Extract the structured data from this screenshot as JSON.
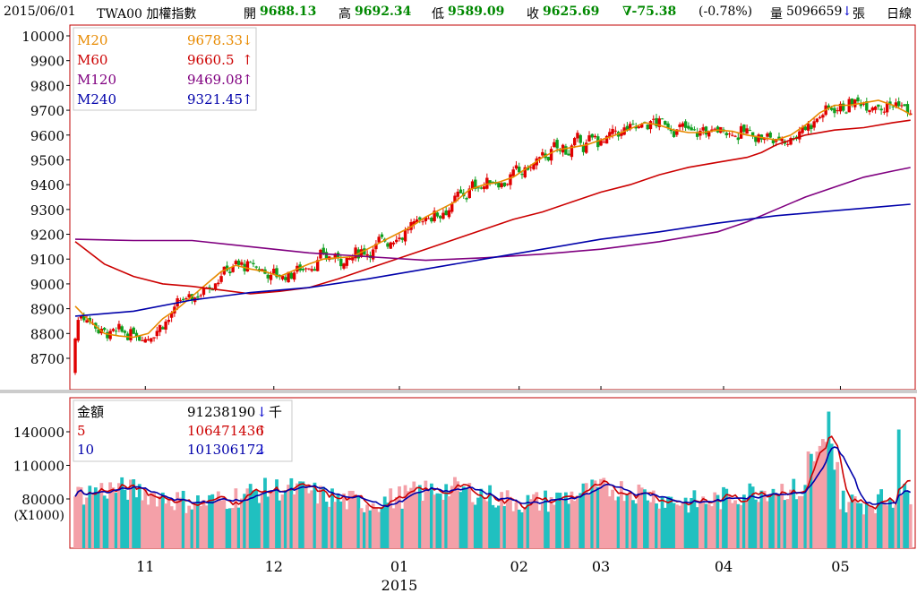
{
  "header": {
    "date": "2015/06/01",
    "symbol": "TWA00 加權指數",
    "open_label": "開",
    "open_value": "9688.13",
    "high_label": "高",
    "high_value": "9692.34",
    "low_label": "低",
    "low_value": "9589.09",
    "close_label": "收",
    "close_value": "9625.69",
    "change": "∇-75.38",
    "change_pct": "(-0.78%)",
    "volume_label": "量",
    "volume_value": "5096659",
    "volume_arrow": "↓",
    "volume_unit": "張",
    "period": "日線"
  },
  "price_legend": [
    {
      "name": "M20",
      "value": "9678.33",
      "arrow": "↓",
      "color": "#e88a00"
    },
    {
      "name": "M60",
      "value": "9660.5",
      "arrow": "↑",
      "color": "#cc0000"
    },
    {
      "name": "M120",
      "value": "9469.08",
      "arrow": "↑",
      "color": "#800080"
    },
    {
      "name": "M240",
      "value": "9321.45",
      "arrow": "↑",
      "color": "#0000aa"
    }
  ],
  "volume_legend": [
    {
      "name": "金額",
      "value": "91238190",
      "arrow": "↓",
      "unit": "千",
      "color": "#000000"
    },
    {
      "name": "5",
      "value": "106471436",
      "arrow": "↑",
      "unit": "",
      "color": "#cc0000"
    },
    {
      "name": "10",
      "value": "101306172",
      "arrow": "↓",
      "unit": "",
      "color": "#0000aa"
    }
  ],
  "colors": {
    "up": "#f08c8c",
    "down": "#10a878",
    "up_candle": "#e00000",
    "down_candle": "#10a020",
    "vol_up": "#f4a0a8",
    "vol_down": "#20c0c0",
    "frame": "#c00000",
    "grid": "#999999"
  },
  "chart_data": [
    {
      "type": "candlestick",
      "ylim": [
        8600,
        10050
      ],
      "y_ticks": [
        8700,
        8800,
        8900,
        9000,
        9100,
        9200,
        9300,
        9400,
        9500,
        9600,
        9700,
        9800,
        9900,
        10000
      ],
      "x_ticks": [
        "11",
        "12",
        "01",
        "02",
        "03",
        "04",
        "05"
      ],
      "x_year_label": "2015",
      "series": [
        {
          "name": "M20",
          "points": [
            [
              0,
              8910
            ],
            [
              5,
              8850
            ],
            [
              10,
              8800
            ],
            [
              15,
              8790
            ],
            [
              20,
              8785
            ],
            [
              25,
              8800
            ],
            [
              30,
              8860
            ],
            [
              35,
              8900
            ],
            [
              40,
              8950
            ],
            [
              45,
              9000
            ],
            [
              50,
              9050
            ],
            [
              55,
              9075
            ],
            [
              60,
              9060
            ],
            [
              65,
              9050
            ],
            [
              70,
              9030
            ],
            [
              75,
              9055
            ],
            [
              80,
              9080
            ],
            [
              85,
              9100
            ],
            [
              90,
              9105
            ],
            [
              95,
              9110
            ],
            [
              100,
              9140
            ],
            [
              105,
              9170
            ],
            [
              110,
              9200
            ],
            [
              115,
              9230
            ],
            [
              120,
              9270
            ],
            [
              125,
              9300
            ],
            [
              130,
              9330
            ],
            [
              135,
              9380
            ],
            [
              140,
              9400
            ],
            [
              145,
              9410
            ],
            [
              150,
              9430
            ],
            [
              155,
              9470
            ],
            [
              160,
              9510
            ],
            [
              165,
              9540
            ],
            [
              170,
              9550
            ],
            [
              175,
              9560
            ],
            [
              180,
              9580
            ],
            [
              185,
              9600
            ],
            [
              190,
              9625
            ],
            [
              195,
              9650
            ],
            [
              200,
              9640
            ],
            [
              205,
              9620
            ],
            [
              210,
              9610
            ],
            [
              215,
              9610
            ],
            [
              220,
              9620
            ],
            [
              225,
              9615
            ],
            [
              230,
              9600
            ],
            [
              235,
              9590
            ],
            [
              240,
              9580
            ],
            [
              245,
              9600
            ],
            [
              250,
              9640
            ],
            [
              255,
              9690
            ],
            [
              260,
              9720
            ],
            [
              265,
              9720
            ],
            [
              270,
              9730
            ],
            [
              275,
              9740
            ],
            [
              280,
              9720
            ],
            [
              285,
              9690
            ],
            [
              286,
              9680
            ]
          ]
        },
        {
          "name": "M60",
          "points": [
            [
              0,
              9170
            ],
            [
              10,
              9080
            ],
            [
              20,
              9030
            ],
            [
              30,
              9000
            ],
            [
              40,
              8990
            ],
            [
              50,
              8975
            ],
            [
              60,
              8960
            ],
            [
              70,
              8970
            ],
            [
              80,
              8985
            ],
            [
              90,
              9020
            ],
            [
              100,
              9060
            ],
            [
              110,
              9100
            ],
            [
              120,
              9140
            ],
            [
              130,
              9180
            ],
            [
              140,
              9220
            ],
            [
              150,
              9260
            ],
            [
              160,
              9290
            ],
            [
              170,
              9330
            ],
            [
              180,
              9370
            ],
            [
              190,
              9400
            ],
            [
              200,
              9440
            ],
            [
              210,
              9470
            ],
            [
              220,
              9490
            ],
            [
              230,
              9510
            ],
            [
              235,
              9530
            ],
            [
              240,
              9560
            ],
            [
              245,
              9580
            ],
            [
              250,
              9600
            ],
            [
              260,
              9620
            ],
            [
              270,
              9630
            ],
            [
              280,
              9650
            ],
            [
              286,
              9660
            ]
          ]
        },
        {
          "name": "M120",
          "points": [
            [
              0,
              9180
            ],
            [
              20,
              9175
            ],
            [
              40,
              9175
            ],
            [
              60,
              9150
            ],
            [
              80,
              9125
            ],
            [
              100,
              9110
            ],
            [
              120,
              9095
            ],
            [
              140,
              9105
            ],
            [
              160,
              9120
            ],
            [
              180,
              9140
            ],
            [
              200,
              9170
            ],
            [
              210,
              9190
            ],
            [
              220,
              9210
            ],
            [
              230,
              9250
            ],
            [
              240,
              9300
            ],
            [
              250,
              9350
            ],
            [
              260,
              9390
            ],
            [
              270,
              9430
            ],
            [
              280,
              9455
            ],
            [
              286,
              9469
            ]
          ]
        },
        {
          "name": "M240",
          "points": [
            [
              0,
              8870
            ],
            [
              20,
              8890
            ],
            [
              40,
              8935
            ],
            [
              60,
              8965
            ],
            [
              80,
              8985
            ],
            [
              100,
              9020
            ],
            [
              120,
              9060
            ],
            [
              140,
              9100
            ],
            [
              160,
              9140
            ],
            [
              180,
              9180
            ],
            [
              200,
              9210
            ],
            [
              220,
              9245
            ],
            [
              240,
              9275
            ],
            [
              260,
              9295
            ],
            [
              275,
              9310
            ],
            [
              286,
              9321
            ]
          ]
        }
      ]
    },
    {
      "type": "bar",
      "ylabel": "(X1000)",
      "y_ticks": [
        80000,
        110000,
        140000
      ],
      "series": [
        {
          "name": "金額"
        },
        {
          "name": "5"
        },
        {
          "name": "10"
        }
      ]
    }
  ]
}
